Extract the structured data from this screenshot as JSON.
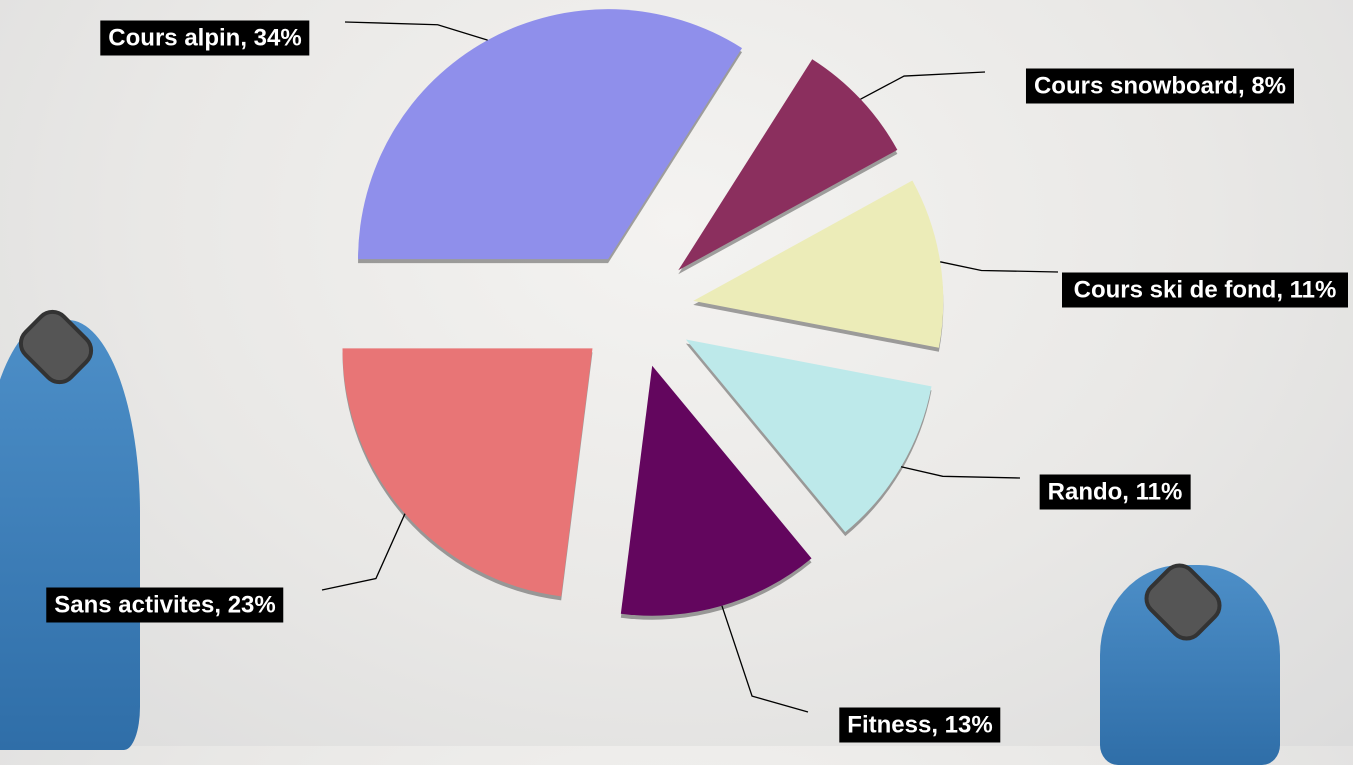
{
  "chart_data": {
    "type": "pie",
    "values": [
      34,
      8,
      11,
      11,
      13,
      23
    ],
    "value_labels": [
      "Cours alpin, 34%",
      "Cours snowboard, 8%",
      "Cours ski de fond, 11%",
      "Rando, 11%",
      "Fitness, 13%",
      "Sans activites, 23%"
    ],
    "colors": [
      "#8f8feb",
      "#8b2f5e",
      "#ececb8",
      "#bde9ea",
      "#63065e",
      "#e87576"
    ]
  }
}
